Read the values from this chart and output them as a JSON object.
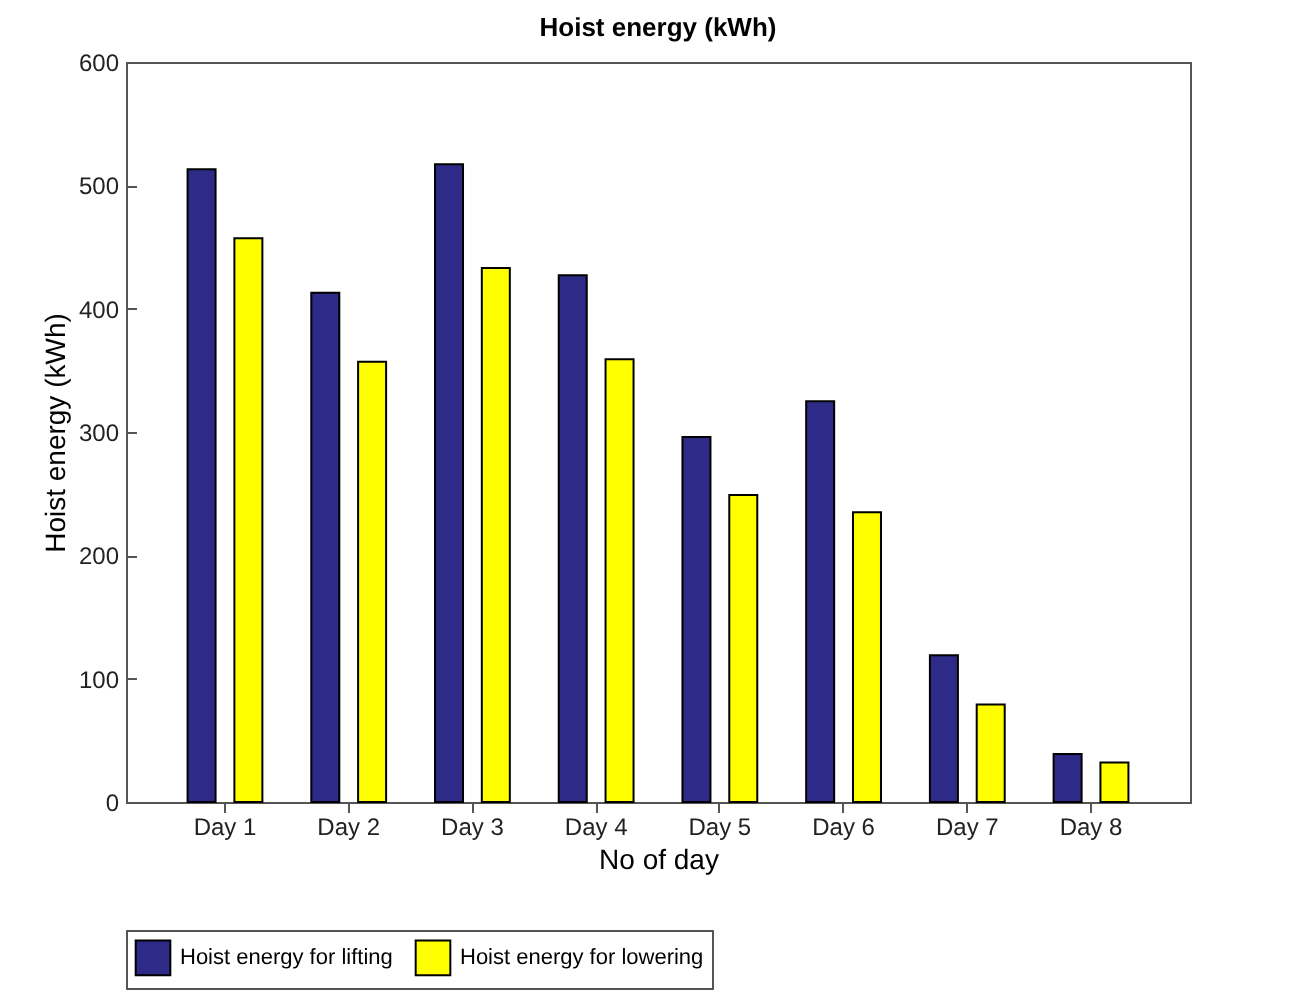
{
  "chart_data": {
    "type": "bar",
    "title": "Hoist energy (kWh)",
    "xlabel": "No of day",
    "ylabel": "Hoist energy (kWh)",
    "categories": [
      "Day 1",
      "Day 2",
      "Day 3",
      "Day 4",
      "Day 5",
      "Day 6",
      "Day 7",
      "Day 8"
    ],
    "series": [
      {
        "name": "Hoist energy for lifting",
        "color": "#2e2a87",
        "values": [
          513,
          413,
          517,
          427,
          296,
          325,
          119,
          39
        ]
      },
      {
        "name": "Hoist energy for lowering",
        "color": "#ffff00",
        "values": [
          457,
          357,
          433,
          359,
          249,
          235,
          79,
          32
        ]
      }
    ],
    "ylim": [
      0,
      600
    ],
    "yticks": [
      0,
      100,
      200,
      300,
      400,
      500,
      600
    ],
    "grid": false,
    "legend": "bottom"
  }
}
